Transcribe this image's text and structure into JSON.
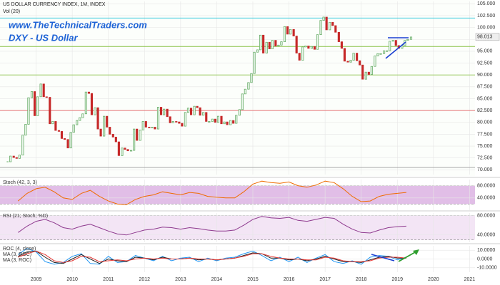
{
  "chart_data": [
    {
      "type": "candlestick",
      "title": "US DOLLAR CURRENCY INDEX, 1M, INDEX",
      "subtitle": "Vol (20)",
      "annotations": [
        "www.TheTechnicalTraders.com",
        "DXY - US Dollar"
      ],
      "up_color": "#5aa55a",
      "down_color": "#c62828",
      "x": [
        2008.21,
        2008.29,
        2008.38,
        2008.46,
        2008.54,
        2008.63,
        2008.71,
        2008.79,
        2008.88,
        2008.96,
        2009.04,
        2009.13,
        2009.21,
        2009.29,
        2009.38,
        2009.46,
        2009.54,
        2009.63,
        2009.71,
        2009.79,
        2009.88,
        2009.96,
        2010.04,
        2010.13,
        2010.21,
        2010.29,
        2010.38,
        2010.46,
        2010.54,
        2010.63,
        2010.71,
        2010.79,
        2010.88,
        2010.96,
        2011.04,
        2011.13,
        2011.21,
        2011.29,
        2011.38,
        2011.46,
        2011.54,
        2011.63,
        2011.71,
        2011.79,
        2011.88,
        2011.96,
        2012.04,
        2012.13,
        2012.21,
        2012.29,
        2012.38,
        2012.46,
        2012.54,
        2012.63,
        2012.71,
        2012.79,
        2012.88,
        2012.96,
        2013.04,
        2013.13,
        2013.21,
        2013.29,
        2013.38,
        2013.46,
        2013.54,
        2013.63,
        2013.71,
        2013.79,
        2013.88,
        2013.96,
        2014.04,
        2014.13,
        2014.21,
        2014.29,
        2014.38,
        2014.46,
        2014.54,
        2014.63,
        2014.71,
        2014.79,
        2014.88,
        2014.96,
        2015.04,
        2015.13,
        2015.21,
        2015.29,
        2015.38,
        2015.46,
        2015.54,
        2015.63,
        2015.71,
        2015.79,
        2015.88,
        2015.96,
        2016.04,
        2016.13,
        2016.21,
        2016.29,
        2016.38,
        2016.46,
        2016.54,
        2016.63,
        2016.71,
        2016.79,
        2016.88,
        2016.96,
        2017.04,
        2017.13,
        2017.21,
        2017.29,
        2017.38,
        2017.46,
        2017.54,
        2017.63,
        2017.71,
        2017.79,
        2017.88,
        2017.96,
        2018.04,
        2018.13,
        2018.21,
        2018.29,
        2018.38,
        2018.46,
        2018.54,
        2018.63,
        2018.71,
        2018.79,
        2018.88,
        2018.96,
        2019.04,
        2019.13,
        2019.21,
        2019.29,
        2019.38
      ],
      "values": [
        71.7,
        72.9,
        72.6,
        72.4,
        73.1,
        77.3,
        79.6,
        85.2,
        86.5,
        81.4,
        85.4,
        88.1,
        85.4,
        85.3,
        79.7,
        80.2,
        78.3,
        78.1,
        76.6,
        76.4,
        74.6,
        77.9,
        79.5,
        80.4,
        81.0,
        81.8,
        86.4,
        86.1,
        81.6,
        83.1,
        78.6,
        77.1,
        81.3,
        79.0,
        77.5,
        76.9,
        75.9,
        73.0,
        74.6,
        74.3,
        74.0,
        74.1,
        78.6,
        76.2,
        78.4,
        80.2,
        79.0,
        78.9,
        79.0,
        78.6,
        83.2,
        81.6,
        82.8,
        81.2,
        79.9,
        80.2,
        80.1,
        79.8,
        79.2,
        82.1,
        83.0,
        81.6,
        83.4,
        83.1,
        81.5,
        82.1,
        80.2,
        80.2,
        80.7,
        80.0,
        81.3,
        79.7,
        80.1,
        79.5,
        80.4,
        79.8,
        81.5,
        82.7,
        86.0,
        87.0,
        88.4,
        90.3,
        94.8,
        95.3,
        98.4,
        94.6,
        96.9,
        95.5,
        97.3,
        96.1,
        96.3,
        97.0,
        100.2,
        98.6,
        99.6,
        98.2,
        94.6,
        93.1,
        95.9,
        96.1,
        95.6,
        96.0,
        95.4,
        98.5,
        101.5,
        102.2,
        99.5,
        101.1,
        100.4,
        99.0,
        97.0,
        95.6,
        92.9,
        92.7,
        93.1,
        94.6,
        93.0,
        92.1,
        89.1,
        90.6,
        90.1,
        91.8,
        94.0,
        94.5,
        94.5,
        95.1,
        95.1,
        97.1,
        97.3,
        96.2,
        95.6,
        96.2,
        97.3,
        97.5,
        98.0
      ],
      "last_price": {
        "value": 98.013,
        "label": "98.013"
      },
      "levels": [
        {
          "value": 102,
          "color": "#26c6da"
        },
        {
          "value": 96,
          "color": "#8bc34a"
        },
        {
          "value": 90,
          "color": "#8bc34a"
        },
        {
          "value": 82.5,
          "color": "#e57373"
        },
        {
          "value": 70.5,
          "color": "#9e9e9e"
        }
      ],
      "xlim": [
        2008.0,
        2021.15
      ],
      "ylim": [
        69,
        105.5
      ],
      "yticks": [
        {
          "value": 70,
          "label": "70.000"
        },
        {
          "value": 72.5,
          "label": "72.500"
        },
        {
          "value": 75,
          "label": "75.000"
        },
        {
          "value": 77.5,
          "label": "77.500"
        },
        {
          "value": 80,
          "label": "80.000"
        },
        {
          "value": 82.5,
          "label": "82.500"
        },
        {
          "value": 85,
          "label": "85.000"
        },
        {
          "value": 87.5,
          "label": "87.500"
        },
        {
          "value": 90,
          "label": "90.000"
        },
        {
          "value": 92.5,
          "label": "92.500"
        },
        {
          "value": 95,
          "label": "95.000"
        },
        {
          "value": 97.5,
          "label": "97.500"
        },
        {
          "value": 100,
          "label": "100.000"
        },
        {
          "value": 102.5,
          "label": "102.500"
        },
        {
          "value": 105,
          "label": "105.000"
        }
      ]
    },
    {
      "type": "line",
      "title": "Stoch (42, 3, 3)",
      "x": [
        2008.5,
        2008.75,
        2009,
        2009.25,
        2009.5,
        2009.75,
        2010,
        2010.25,
        2010.5,
        2010.75,
        2011,
        2011.25,
        2011.5,
        2011.75,
        2012,
        2012.25,
        2012.5,
        2012.75,
        2013,
        2013.25,
        2013.5,
        2013.75,
        2014,
        2014.25,
        2014.5,
        2014.75,
        2015,
        2015.25,
        2015.5,
        2015.75,
        2016,
        2016.25,
        2016.5,
        2016.75,
        2017,
        2017.25,
        2017.5,
        2017.75,
        2018,
        2018.25,
        2018.5,
        2018.75,
        2019,
        2019.25
      ],
      "series": [
        {
          "color": "#ef6c00",
          "values": [
            30,
            55,
            70,
            75,
            60,
            40,
            35,
            55,
            65,
            45,
            30,
            20,
            18,
            35,
            45,
            50,
            60,
            55,
            50,
            58,
            55,
            45,
            42,
            40,
            40,
            60,
            85,
            95,
            90,
            88,
            92,
            80,
            75,
            82,
            95,
            90,
            70,
            45,
            28,
            30,
            45,
            52,
            55,
            58
          ]
        }
      ],
      "band": [
        20,
        80
      ],
      "band_color": "#e1bee7",
      "xlim": [
        2008.0,
        2021.15
      ],
      "ylim": [
        0,
        100
      ],
      "yticks": [
        {
          "value": 40,
          "label": "40.0000"
        },
        {
          "value": 80,
          "label": "80.0000"
        }
      ]
    },
    {
      "type": "line",
      "title": "RSI (21; Stoch; %D)",
      "x": [
        2008.5,
        2008.75,
        2009,
        2009.25,
        2009.5,
        2009.75,
        2010,
        2010.25,
        2010.5,
        2010.75,
        2011,
        2011.25,
        2011.5,
        2011.75,
        2012,
        2012.25,
        2012.5,
        2012.75,
        2013,
        2013.25,
        2013.5,
        2013.75,
        2014,
        2014.25,
        2014.5,
        2014.75,
        2015,
        2015.25,
        2015.5,
        2015.75,
        2016,
        2016.25,
        2016.5,
        2016.75,
        2017,
        2017.25,
        2017.5,
        2017.75,
        2018,
        2018.25,
        2018.5,
        2018.75,
        2019,
        2019.25
      ],
      "series": [
        {
          "color": "#8e3a8e",
          "values": [
            45,
            58,
            68,
            72,
            65,
            55,
            52,
            58,
            62,
            55,
            48,
            42,
            40,
            45,
            50,
            52,
            56,
            55,
            52,
            55,
            53,
            50,
            48,
            48,
            50,
            60,
            72,
            78,
            75,
            74,
            76,
            70,
            68,
            72,
            76,
            74,
            62,
            52,
            45,
            44,
            50,
            55,
            57,
            58
          ]
        }
      ],
      "band": [
        30,
        80
      ],
      "band_color": "#f3e5f5",
      "xlim": [
        2008.0,
        2021.15
      ],
      "ylim": [
        25,
        85
      ],
      "yticks": [
        {
          "value": 40,
          "label": "40.0000"
        },
        {
          "value": 80,
          "label": "80.0000"
        }
      ]
    },
    {
      "type": "line",
      "x": [
        2008.5,
        2008.75,
        2009,
        2009.25,
        2009.5,
        2009.75,
        2010,
        2010.25,
        2010.5,
        2010.75,
        2011,
        2011.25,
        2011.5,
        2011.75,
        2012,
        2012.25,
        2012.5,
        2012.75,
        2013,
        2013.25,
        2013.5,
        2013.75,
        2014,
        2014.25,
        2014.5,
        2014.75,
        2015,
        2015.25,
        2015.5,
        2015.75,
        2016,
        2016.25,
        2016.5,
        2016.75,
        2017,
        2017.25,
        2017.5,
        2017.75,
        2018,
        2018.25,
        2018.5,
        2018.75,
        2019,
        2019.25
      ],
      "series": [
        {
          "name": "ROC (4, close)",
          "color": "#2196f3",
          "values": [
            5,
            12,
            8,
            -3,
            -6,
            -4,
            3,
            6,
            -5,
            -6,
            3,
            -4,
            -3,
            4,
            1,
            -2,
            3,
            -2,
            1,
            2,
            -3,
            1,
            -2,
            1,
            2,
            6,
            9,
            4,
            -2,
            2,
            -3,
            2,
            -4,
            1,
            5,
            -3,
            -5,
            -2,
            -6,
            2,
            4,
            3,
            -1,
            2
          ]
        },
        {
          "name": "MA (3, ROC)",
          "color": "#212121",
          "values": [
            3,
            8,
            9,
            2,
            -4,
            -5,
            0,
            5,
            0,
            -5,
            0,
            -2,
            -3,
            2,
            1,
            -1,
            2,
            0,
            0,
            1,
            -1,
            0,
            -1,
            0,
            1,
            4,
            7,
            6,
            1,
            1,
            -1,
            0,
            -2,
            0,
            3,
            0,
            -3,
            -3,
            -4,
            -1,
            2,
            3,
            1,
            1
          ]
        },
        {
          "name": "MA (3, ROC)",
          "color": "#e53935",
          "values": [
            2,
            6,
            9,
            5,
            -2,
            -4,
            -2,
            3,
            2,
            -3,
            -2,
            -1,
            -2,
            0,
            1,
            0,
            1,
            0,
            0,
            1,
            0,
            0,
            -1,
            0,
            1,
            3,
            6,
            6,
            3,
            1,
            0,
            0,
            -1,
            -1,
            2,
            1,
            -2,
            -3,
            -3,
            -2,
            1,
            2,
            2,
            1
          ]
        }
      ],
      "xlim": [
        2008.0,
        2021.15
      ],
      "ylim": [
        -15,
        15
      ],
      "xticks": [
        2009,
        2010,
        2011,
        2012,
        2013,
        2014,
        2015,
        2016,
        2017,
        2018,
        2019,
        2020,
        2021
      ],
      "yticks": [
        {
          "value": 10,
          "label": "10.0000"
        },
        {
          "value": 0,
          "label": "0.0000"
        },
        {
          "value": -10,
          "label": "-10.0000"
        }
      ]
    }
  ]
}
